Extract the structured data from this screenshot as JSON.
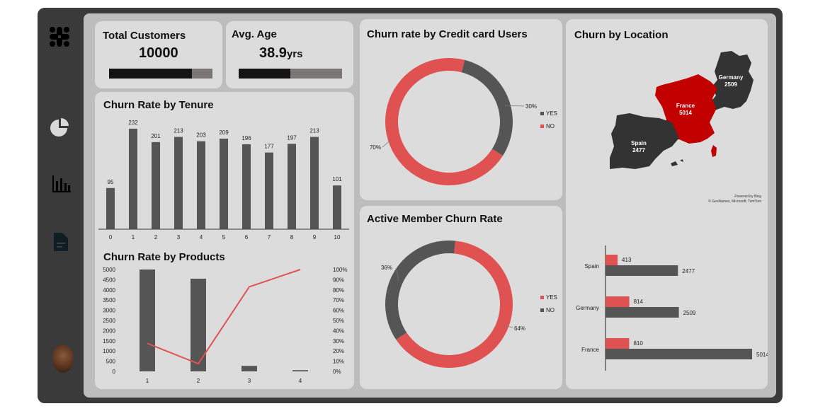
{
  "sidebar": {
    "icons": [
      "slack-logo-icon",
      "pie-chart-icon",
      "bar-chart-icon",
      "document-icon",
      "user-avatar"
    ]
  },
  "kpis": {
    "total_customers": {
      "label": "Total Customers",
      "value": "10000",
      "progress": 0.8
    },
    "avg_age": {
      "label": "Avg. Age",
      "value": "38.9",
      "unit": "yrs",
      "progress": 0.5
    }
  },
  "colors": {
    "red": "#e05252",
    "dark": "#555555",
    "black": "#141414"
  },
  "chart_data": [
    {
      "id": "tenure",
      "type": "bar",
      "title": "Churn Rate by Tenure",
      "categories": [
        "0",
        "1",
        "2",
        "3",
        "4",
        "5",
        "6",
        "7",
        "8",
        "9",
        "10"
      ],
      "values": [
        95,
        232,
        201,
        213,
        203,
        209,
        196,
        177,
        197,
        213,
        101
      ],
      "ylim": [
        0,
        240
      ]
    },
    {
      "id": "products",
      "type": "bar",
      "title": "Churn Rate by Products",
      "categories": [
        "1",
        "2",
        "3",
        "4"
      ],
      "series": [
        {
          "type": "bar",
          "values": [
            5000,
            4550,
            270,
            60
          ]
        },
        {
          "type": "line",
          "axis": "right",
          "values": [
            27.5,
            7.5,
            83,
            100
          ]
        }
      ],
      "left_ticks": [
        "0",
        "500",
        "1000",
        "1500",
        "2000",
        "2500",
        "3000",
        "3500",
        "4000",
        "4500",
        "5000"
      ],
      "right_ticks": [
        "0%",
        "10%",
        "20%",
        "30%",
        "40%",
        "50%",
        "60%",
        "70%",
        "80%",
        "90%",
        "100%"
      ],
      "ylim": [
        0,
        5000
      ],
      "y2lim": [
        0,
        100
      ]
    },
    {
      "id": "credit",
      "type": "pie",
      "title": "Churn rate by Credit card Users",
      "labels": [
        "YES",
        "NO"
      ],
      "values": [
        30,
        70
      ],
      "value_labels": [
        "30%",
        "70%"
      ]
    },
    {
      "id": "active",
      "type": "pie",
      "title": "Active Member Churn Rate",
      "labels": [
        "YES",
        "NO"
      ],
      "values": [
        64,
        36
      ],
      "value_labels": [
        "64%",
        "36%"
      ]
    },
    {
      "id": "location",
      "type": "bar",
      "orientation": "horizontal",
      "title": "Churn by Location",
      "categories": [
        "Spain",
        "Germany",
        "France"
      ],
      "series": [
        {
          "values": [
            413,
            814,
            810
          ]
        },
        {
          "values": [
            2477,
            2509,
            5014
          ]
        }
      ],
      "xlim": [
        0,
        5014
      ]
    }
  ],
  "map": {
    "regions": [
      {
        "name": "France",
        "value": "5014"
      },
      {
        "name": "Germany",
        "value": "2509"
      },
      {
        "name": "Spain",
        "value": "2477"
      }
    ],
    "credit_line1": "Powered by Bing",
    "credit_line2": "© GeoNames, Microsoft, TomTom"
  }
}
